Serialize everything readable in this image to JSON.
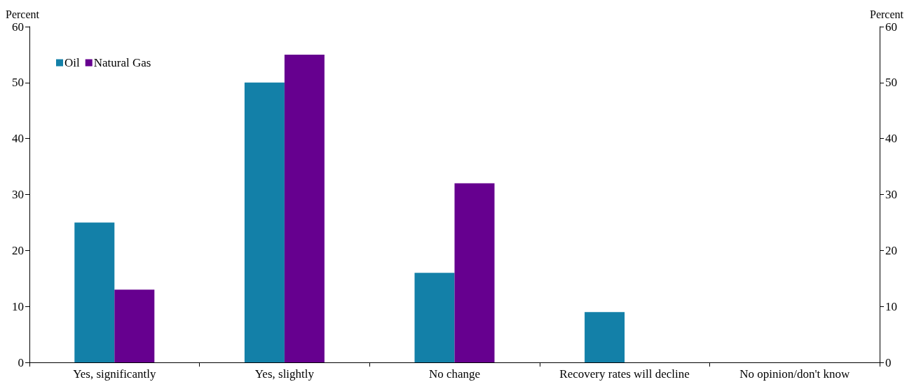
{
  "chart_data": {
    "type": "bar",
    "ylabel": "Percent",
    "y2label": "Percent",
    "categories": [
      "Yes, significantly",
      "Yes, slightly",
      "No change",
      "Recovery rates will decline",
      "No opinion/don't know"
    ],
    "series": [
      {
        "name": "Oil",
        "color": "#1380a8",
        "values": [
          25,
          50,
          16,
          9,
          0
        ]
      },
      {
        "name": "Natural Gas",
        "color": "#66008f",
        "values": [
          13,
          55,
          32,
          0,
          0
        ]
      }
    ],
    "ylim": [
      0,
      60
    ],
    "yticks": [
      0,
      10,
      20,
      30,
      40,
      50,
      60
    ],
    "y2lim": [
      0,
      60
    ],
    "y2ticks": [
      0,
      10,
      20,
      30,
      40,
      50,
      60
    ],
    "grid": false,
    "legend": "top left"
  }
}
